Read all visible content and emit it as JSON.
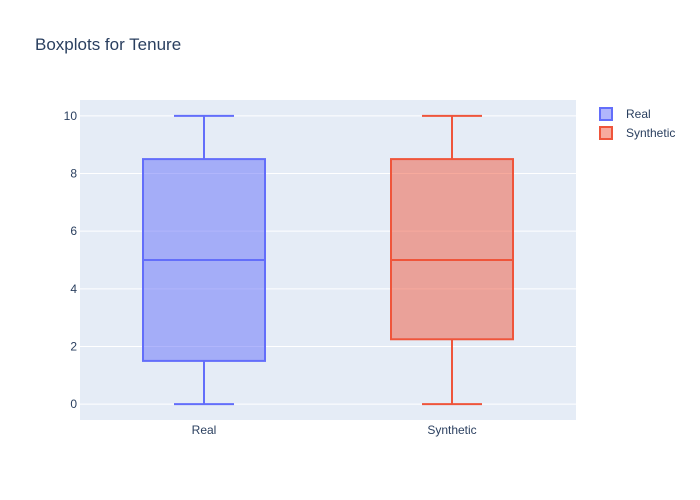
{
  "chart_data": {
    "type": "box",
    "title": "Boxplots for Tenure",
    "xlabel": "",
    "ylabel": "",
    "categories": [
      "Real",
      "Synthetic"
    ],
    "ylim": [
      -0.55,
      10.55
    ],
    "y_ticks": [
      0,
      2,
      4,
      6,
      8,
      10
    ],
    "grid": true,
    "legend_position": "top-right",
    "series": [
      {
        "name": "Real",
        "category": "Real",
        "min": 0,
        "q1": 1.5,
        "median": 5,
        "q3": 8.5,
        "max": 10,
        "color": "#636efa"
      },
      {
        "name": "Synthetic",
        "category": "Synthetic",
        "min": 0,
        "q1": 2.25,
        "median": 5,
        "q3": 8.5,
        "max": 10,
        "color": "#ef553b"
      }
    ]
  },
  "colors": {
    "plot_background": "#e5ecf6",
    "grid": "#ffffff",
    "text": "#2a3f5f"
  }
}
